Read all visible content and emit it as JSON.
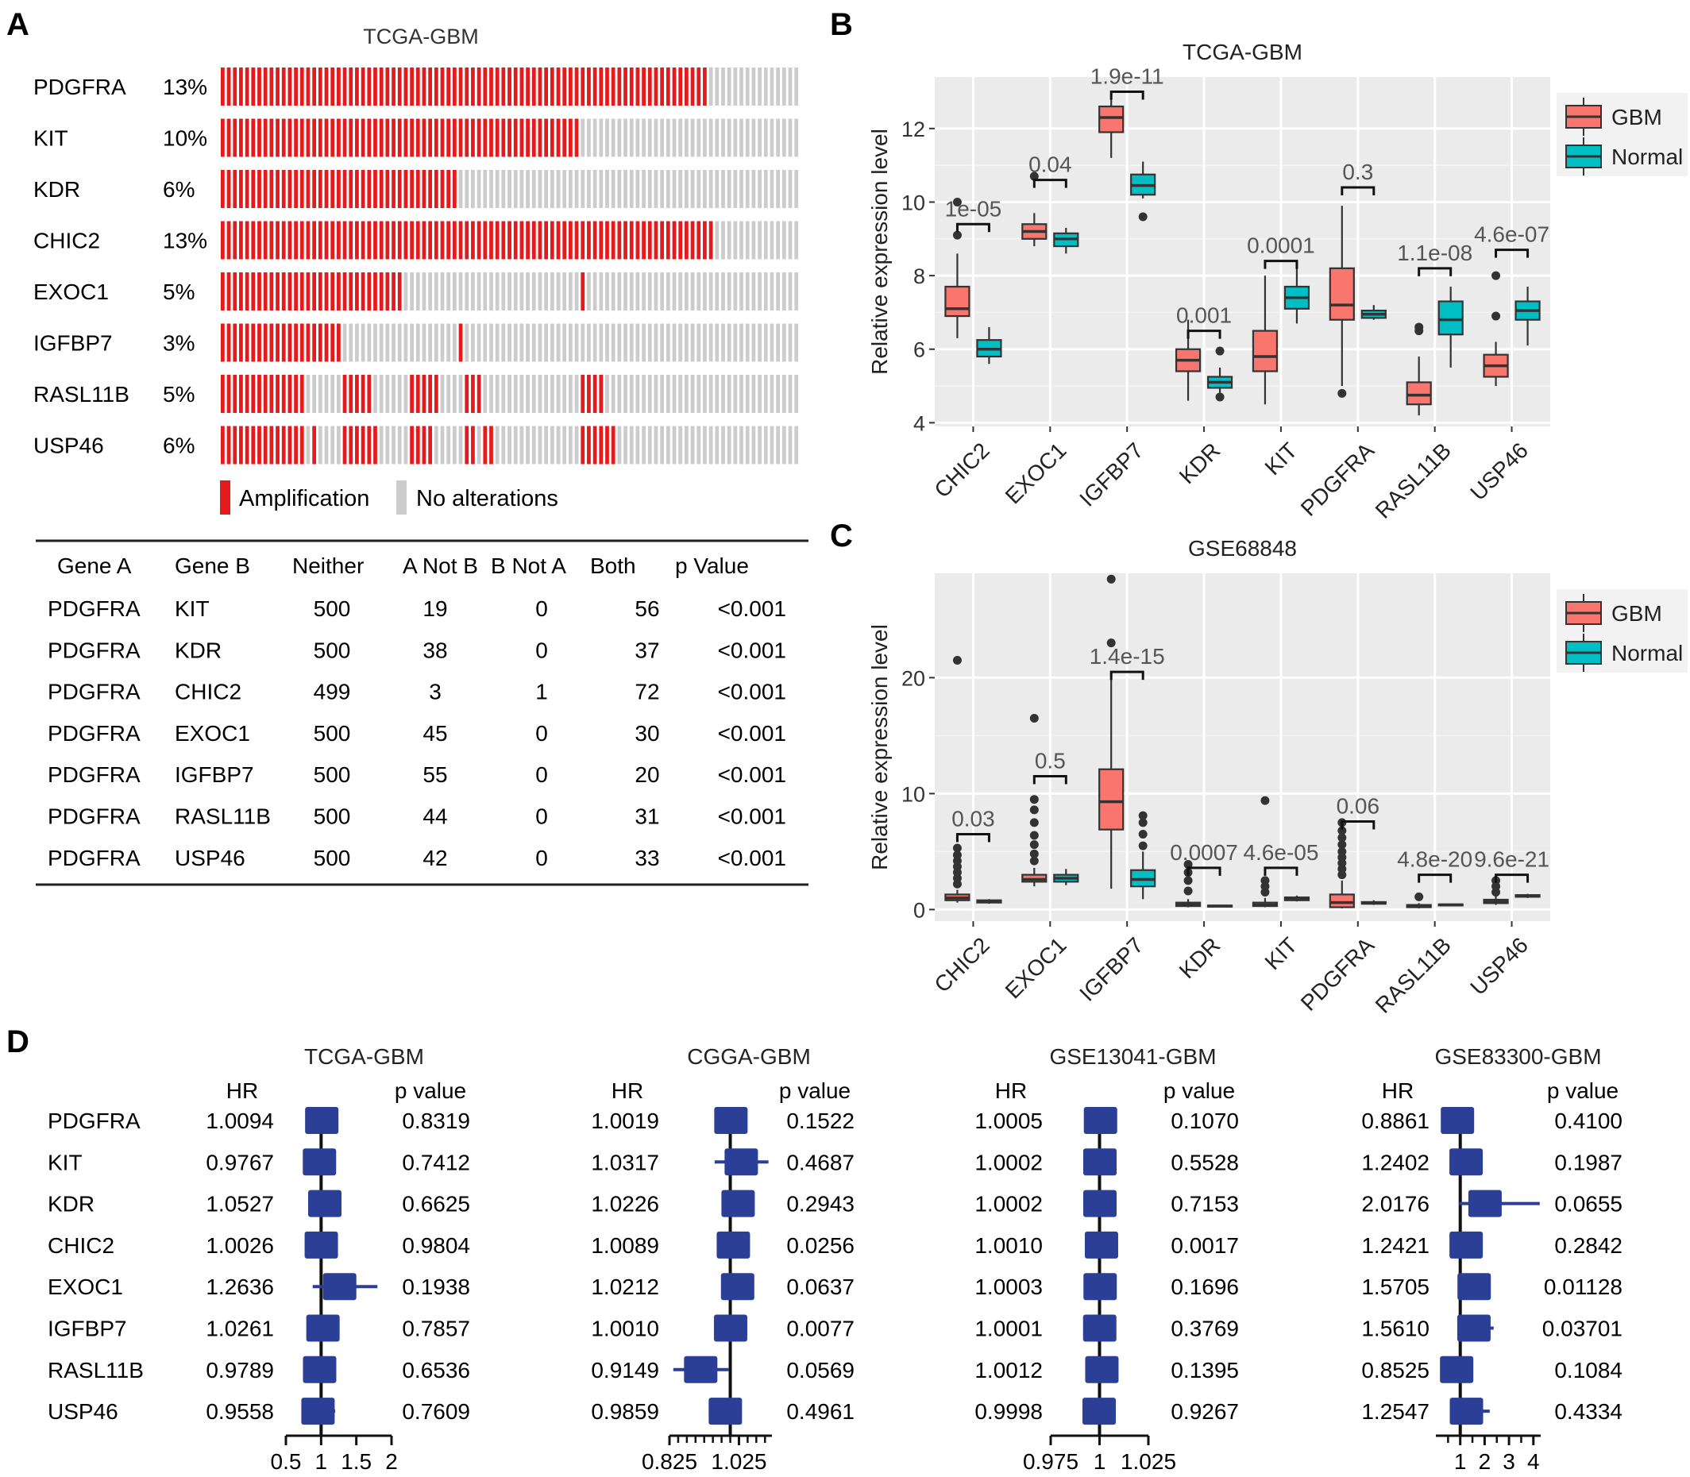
{
  "panels": {
    "a": "A",
    "b": "B",
    "c": "C",
    "d": "D"
  },
  "panelA": {
    "title": "TCGA-GBM",
    "genes": [
      "PDGFRA",
      "KIT",
      "KDR",
      "CHIC2",
      "EXOC1",
      "IGFBP7",
      "RASL11B",
      "USP46"
    ],
    "percents": [
      "13%",
      "10%",
      "6%",
      "13%",
      "5%",
      "3%",
      "5%",
      "6%"
    ],
    "legend": {
      "amp": "Amplification",
      "none": "No alterations"
    },
    "colors": {
      "amp": "#e41a1c",
      "none": "#cccccc"
    },
    "oncoprint_columns": 95,
    "amplified_columns": [
      [
        [
          0,
          79
        ]
      ],
      [
        [
          0,
          58
        ]
      ],
      [
        [
          0,
          38
        ]
      ],
      [
        [
          0,
          59
        ],
        [
          59,
          79
        ],
        [
          80,
          80
        ]
      ],
      [
        [
          0,
          29
        ],
        [
          59,
          59
        ]
      ],
      [
        [
          0,
          19
        ],
        [
          39,
          39
        ]
      ],
      [
        [
          0,
          13
        ],
        [
          20,
          24
        ],
        [
          31,
          35
        ],
        [
          40,
          42
        ],
        [
          59,
          62
        ]
      ],
      [
        [
          0,
          13
        ],
        [
          15,
          15
        ],
        [
          20,
          25
        ],
        [
          31,
          34
        ],
        [
          40,
          41
        ],
        [
          43,
          44
        ],
        [
          59,
          64
        ]
      ]
    ]
  },
  "table": {
    "headers": [
      "Gene A",
      "Gene B",
      "Neither",
      "A Not   B",
      "B Not   A",
      "Both",
      "p Value"
    ],
    "rows": [
      [
        "PDGFRA",
        "KIT",
        "500",
        "19",
        "0",
        "56",
        "<0.001"
      ],
      [
        "PDGFRA",
        "KDR",
        "500",
        "38",
        "0",
        "37",
        "<0.001"
      ],
      [
        "PDGFRA",
        "CHIC2",
        "499",
        "3",
        "1",
        "72",
        "<0.001"
      ],
      [
        "PDGFRA",
        "EXOC1",
        "500",
        "45",
        "0",
        "30",
        "<0.001"
      ],
      [
        "PDGFRA",
        "IGFBP7",
        "500",
        "55",
        "0",
        "20",
        "<0.001"
      ],
      [
        "PDGFRA",
        "RASL11B",
        "500",
        "44",
        "0",
        "31",
        "<0.001"
      ],
      [
        "PDGFRA",
        "USP46",
        "500",
        "42",
        "0",
        "33",
        "<0.001"
      ]
    ]
  },
  "chart_data": [
    {
      "type": "boxplot",
      "panel": "B",
      "title": "TCGA-GBM",
      "ylabel": "Relative expression level",
      "ylim": [
        3.9,
        13.4
      ],
      "yticks": [
        4,
        6,
        8,
        10,
        12
      ],
      "categories": [
        "CHIC2",
        "EXOC1",
        "IGFBP7",
        "KDR",
        "KIT",
        "PDGFRA",
        "RASL11B",
        "USP46"
      ],
      "legend": [
        "GBM",
        "Normal"
      ],
      "colors": {
        "GBM": "#f8766d",
        "Normal": "#00bfc4",
        "panel": "#ebebeb"
      },
      "legend_position": "right",
      "series": [
        {
          "name": "GBM",
          "boxes": [
            {
              "min": 6.3,
              "q1": 6.9,
              "median": 7.1,
              "q3": 7.7,
              "max": 8.6,
              "outliers": [
                9.1,
                10.0
              ]
            },
            {
              "min": 8.8,
              "q1": 9.0,
              "median": 9.2,
              "q3": 9.4,
              "max": 9.7,
              "outliers": [
                10.7
              ]
            },
            {
              "min": 11.2,
              "q1": 11.9,
              "median": 12.3,
              "q3": 12.6,
              "max": 13.0,
              "outliers": []
            },
            {
              "min": 4.6,
              "q1": 5.4,
              "median": 5.7,
              "q3": 6.0,
              "max": 6.8,
              "outliers": []
            },
            {
              "min": 4.5,
              "q1": 5.4,
              "median": 5.8,
              "q3": 6.5,
              "max": 8.0,
              "outliers": []
            },
            {
              "min": 5.0,
              "q1": 6.8,
              "median": 7.2,
              "q3": 8.2,
              "max": 9.9,
              "outliers": [
                4.8
              ]
            },
            {
              "min": 4.2,
              "q1": 4.5,
              "median": 4.75,
              "q3": 5.1,
              "max": 5.8,
              "outliers": [
                6.6,
                6.5
              ]
            },
            {
              "min": 5.0,
              "q1": 5.25,
              "median": 5.55,
              "q3": 5.85,
              "max": 6.2,
              "outliers": [
                6.9,
                8.0
              ]
            }
          ]
        },
        {
          "name": "Normal",
          "boxes": [
            {
              "min": 5.6,
              "q1": 5.8,
              "median": 6.0,
              "q3": 6.25,
              "max": 6.6,
              "outliers": []
            },
            {
              "min": 8.6,
              "q1": 8.8,
              "median": 9.0,
              "q3": 9.15,
              "max": 9.3,
              "outliers": []
            },
            {
              "min": 10.1,
              "q1": 10.2,
              "median": 10.45,
              "q3": 10.75,
              "max": 11.1,
              "outliers": [
                9.6
              ]
            },
            {
              "min": 4.8,
              "q1": 4.95,
              "median": 5.1,
              "q3": 5.25,
              "max": 5.5,
              "outliers": [
                5.95,
                4.7
              ]
            },
            {
              "min": 6.7,
              "q1": 7.1,
              "median": 7.4,
              "q3": 7.7,
              "max": 8.2,
              "outliers": []
            },
            {
              "min": 6.8,
              "q1": 6.85,
              "median": 6.95,
              "q3": 7.05,
              "max": 7.2,
              "outliers": []
            },
            {
              "min": 5.5,
              "q1": 6.4,
              "median": 6.8,
              "q3": 7.3,
              "max": 7.7,
              "outliers": []
            },
            {
              "min": 6.1,
              "q1": 6.8,
              "median": 7.05,
              "q3": 7.3,
              "max": 7.7,
              "outliers": []
            }
          ]
        }
      ],
      "pvalues": [
        {
          "label": "1e-05",
          "y": 9.4
        },
        {
          "label": "0.04",
          "y": 10.6
        },
        {
          "label": "1.9e-11",
          "y": 13.0
        },
        {
          "label": "0.001",
          "y": 6.5
        },
        {
          "label": "0.0001",
          "y": 8.4
        },
        {
          "label": "0.3",
          "y": 10.4
        },
        {
          "label": "1.1e-08",
          "y": 8.2
        },
        {
          "label": "4.6e-07",
          "y": 8.7
        }
      ]
    },
    {
      "type": "boxplot",
      "panel": "C",
      "title": "GSE68848",
      "ylabel": "Relative expression level",
      "ylim": [
        -1,
        29
      ],
      "yticks": [
        0,
        10,
        20
      ],
      "categories": [
        "CHIC2",
        "EXOC1",
        "IGFBP7",
        "KDR",
        "KIT",
        "PDGFRA",
        "RASL11B",
        "USP46"
      ],
      "legend": [
        "GBM",
        "Normal"
      ],
      "colors": {
        "GBM": "#f8766d",
        "Normal": "#00bfc4",
        "panel": "#ebebeb"
      },
      "legend_position": "right",
      "series": [
        {
          "name": "GBM",
          "boxes": [
            {
              "min": 0.6,
              "q1": 0.8,
              "median": 1.0,
              "q3": 1.3,
              "max": 1.7,
              "outliers": [
                2.2,
                2.7,
                3.2,
                3.7,
                4.2,
                4.7,
                5.3,
                21.5
              ]
            },
            {
              "min": 2.0,
              "q1": 2.4,
              "median": 2.6,
              "q3": 3.0,
              "max": 3.6,
              "outliers": [
                4.2,
                4.8,
                5.6,
                6.4,
                7.5,
                8.6,
                9.5,
                16.5
              ]
            },
            {
              "min": 1.8,
              "q1": 6.9,
              "median": 9.3,
              "q3": 12.1,
              "max": 20.5,
              "outliers": [
                23.0,
                28.5
              ]
            },
            {
              "min": 0.2,
              "q1": 0.3,
              "median": 0.45,
              "q3": 0.6,
              "max": 0.9,
              "outliers": [
                1.6,
                2.5,
                3.2,
                3.9
              ]
            },
            {
              "min": 0.2,
              "q1": 0.3,
              "median": 0.4,
              "q3": 0.6,
              "max": 1.0,
              "outliers": [
                1.5,
                2.0,
                2.5,
                9.4
              ]
            },
            {
              "min": 0.1,
              "q1": 0.2,
              "median": 0.6,
              "q3": 1.3,
              "max": 2.5,
              "outliers": [
                3.0,
                3.5,
                4.0,
                4.5,
                5.0,
                5.6,
                6.2,
                6.8,
                7.5
              ]
            },
            {
              "min": 0.1,
              "q1": 0.2,
              "median": 0.3,
              "q3": 0.4,
              "max": 0.55,
              "outliers": [
                1.1
              ]
            },
            {
              "min": 0.4,
              "q1": 0.55,
              "median": 0.7,
              "q3": 0.85,
              "max": 1.2,
              "outliers": [
                1.5,
                2.0,
                2.5
              ]
            }
          ]
        },
        {
          "name": "Normal",
          "boxes": [
            {
              "min": 0.5,
              "q1": 0.6,
              "median": 0.7,
              "q3": 0.8,
              "max": 0.9,
              "outliers": []
            },
            {
              "min": 2.1,
              "q1": 2.4,
              "median": 2.7,
              "q3": 3.0,
              "max": 3.5,
              "outliers": []
            },
            {
              "min": 0.9,
              "q1": 2.0,
              "median": 2.6,
              "q3": 3.4,
              "max": 5.0,
              "outliers": [
                5.5,
                6.5,
                7.5,
                8.1
              ]
            },
            {
              "min": 0.2,
              "q1": 0.25,
              "median": 0.3,
              "q3": 0.35,
              "max": 0.4,
              "outliers": []
            },
            {
              "min": 0.7,
              "q1": 0.8,
              "median": 0.95,
              "q3": 1.05,
              "max": 1.2,
              "outliers": []
            },
            {
              "min": 0.4,
              "q1": 0.5,
              "median": 0.55,
              "q3": 0.65,
              "max": 0.8,
              "outliers": []
            },
            {
              "min": 0.3,
              "q1": 0.35,
              "median": 0.4,
              "q3": 0.45,
              "max": 0.5,
              "outliers": []
            },
            {
              "min": 1.0,
              "q1": 1.1,
              "median": 1.15,
              "q3": 1.25,
              "max": 1.35,
              "outliers": []
            }
          ]
        }
      ],
      "pvalues": [
        {
          "label": "0.03",
          "y": 6.5
        },
        {
          "label": "0.5",
          "y": 11.5
        },
        {
          "label": "1.4e-15",
          "y": 20.5
        },
        {
          "label": "0.0007",
          "y": 3.6
        },
        {
          "label": "4.6e-05",
          "y": 3.6
        },
        {
          "label": "0.06",
          "y": 7.6
        },
        {
          "label": "4.8e-20",
          "y": 3.0
        },
        {
          "label": "9.6e-21",
          "y": 3.0
        }
      ]
    },
    {
      "type": "forest",
      "panel": "D",
      "title": "TCGA-GBM",
      "hr_header": "HR",
      "p_header": "p value",
      "genes": [
        "PDGFRA",
        "KIT",
        "KDR",
        "CHIC2",
        "EXOC1",
        "IGFBP7",
        "RASL11B",
        "USP46"
      ],
      "hr": [
        "1.0094",
        "0.9767",
        "1.0527",
        "1.0026",
        "1.2636",
        "1.0261",
        "0.9789",
        "0.9558"
      ],
      "p": [
        "0.8319",
        "0.7412",
        "0.6625",
        "0.9804",
        "0.1938",
        "0.7857",
        "0.6536",
        "0.7609"
      ],
      "hr_values": [
        1.0094,
        0.9767,
        1.0527,
        1.0026,
        1.2636,
        1.0261,
        0.9789,
        0.9558
      ],
      "ci": [
        [
          0.95,
          1.07
        ],
        [
          0.93,
          1.03
        ],
        [
          0.94,
          1.2
        ],
        [
          0.94,
          1.06
        ],
        [
          0.88,
          1.8
        ],
        [
          0.97,
          1.08
        ],
        [
          0.93,
          1.03
        ],
        [
          0.85,
          1.2
        ]
      ],
      "xlim": [
        0.5,
        2.0
      ],
      "xticks": [
        "0.5",
        "1",
        "1.5",
        "2"
      ],
      "xtick_values": [
        0.5,
        1,
        1.5,
        2
      ]
    },
    {
      "type": "forest",
      "panel": "D",
      "title": "CGGA-GBM",
      "hr_header": "HR",
      "p_header": "p value",
      "hr": [
        "1.0019",
        "1.0317",
        "1.0226",
        "1.0089",
        "1.0212",
        "1.0010",
        "0.9149",
        "0.9859"
      ],
      "p": [
        "0.1522",
        "0.4687",
        "0.2943",
        "0.0256",
        "0.0637",
        "0.0077",
        "0.0569",
        "0.4961"
      ],
      "hr_values": [
        1.0019,
        1.0317,
        1.0226,
        1.0089,
        1.0212,
        1.001,
        0.9149,
        0.9859
      ],
      "ci": [
        [
          0.995,
          1.009
        ],
        [
          0.955,
          1.11
        ],
        [
          0.985,
          1.06
        ],
        [
          1.001,
          1.017
        ],
        [
          0.999,
          1.044
        ],
        [
          1.0003,
          1.0017
        ],
        [
          0.836,
          0.995
        ],
        [
          0.96,
          1.01
        ]
      ],
      "xlim": [
        0.825,
        1.12
      ],
      "xticks": [
        "0.825",
        "1.025"
      ],
      "xtick_values": [
        0.825,
        1.025
      ],
      "minor_ticks": [
        0.85,
        0.875,
        0.9,
        0.925,
        0.95,
        0.975,
        1.0,
        1.05,
        1.075,
        1.1
      ]
    },
    {
      "type": "forest",
      "panel": "D",
      "title": "GSE13041-GBM",
      "hr_header": "HR",
      "p_header": "p value",
      "hr": [
        "1.0005",
        "1.0002",
        "1.0002",
        "1.0010",
        "1.0003",
        "1.0001",
        "1.0012",
        "0.9998"
      ],
      "p": [
        "0.1070",
        "0.5528",
        "0.7153",
        "0.0017",
        "0.1696",
        "0.3769",
        "0.1395",
        "0.9267"
      ],
      "hr_values": [
        1.0005,
        1.0002,
        1.0002,
        1.001,
        1.0003,
        1.0001,
        1.0012,
        0.9998
      ],
      "ci": [
        [
          0.9999,
          1.0011
        ],
        [
          0.9995,
          1.0009
        ],
        [
          0.9993,
          1.0011
        ],
        [
          1.0004,
          1.0016
        ],
        [
          0.9998,
          1.0008
        ],
        [
          0.9998,
          1.0004
        ],
        [
          0.9996,
          1.0028
        ],
        [
          0.9975,
          1.0021
        ]
      ],
      "xlim": [
        0.975,
        1.025
      ],
      "xticks": [
        "0.975",
        "1",
        "1.025"
      ],
      "xtick_values": [
        0.975,
        1,
        1.025
      ]
    },
    {
      "type": "forest",
      "panel": "D",
      "title": "GSE83300-GBM",
      "hr_header": "HR",
      "p_header": "p value",
      "hr": [
        "0.8861",
        "1.2402",
        "2.0176",
        "1.2421",
        "1.5705",
        "1.5610",
        "0.8525",
        "1.2547"
      ],
      "p": [
        "0.4100",
        "0.1987",
        "0.0655",
        "0.2842",
        "0.01128",
        "0.03701",
        "0.1084",
        "0.4334"
      ],
      "hr_values": [
        0.8861,
        1.2402,
        2.0176,
        1.2421,
        1.5705,
        1.561,
        0.8525,
        1.2547
      ],
      "ci": [
        [
          0.7,
          1.18
        ],
        [
          0.89,
          1.73
        ],
        [
          0.96,
          4.26
        ],
        [
          0.84,
          1.84
        ],
        [
          1.1,
          2.23
        ],
        [
          1.03,
          2.37
        ],
        [
          0.7,
          1.04
        ],
        [
          0.71,
          2.21
        ]
      ],
      "xlim": [
        0.0,
        4.3
      ],
      "xticks": [
        "1",
        "2",
        "3",
        "4"
      ],
      "xtick_values": [
        1,
        2,
        3,
        4
      ],
      "minor_ticks": [
        0.5,
        1.5,
        2.5,
        3.5
      ]
    }
  ]
}
